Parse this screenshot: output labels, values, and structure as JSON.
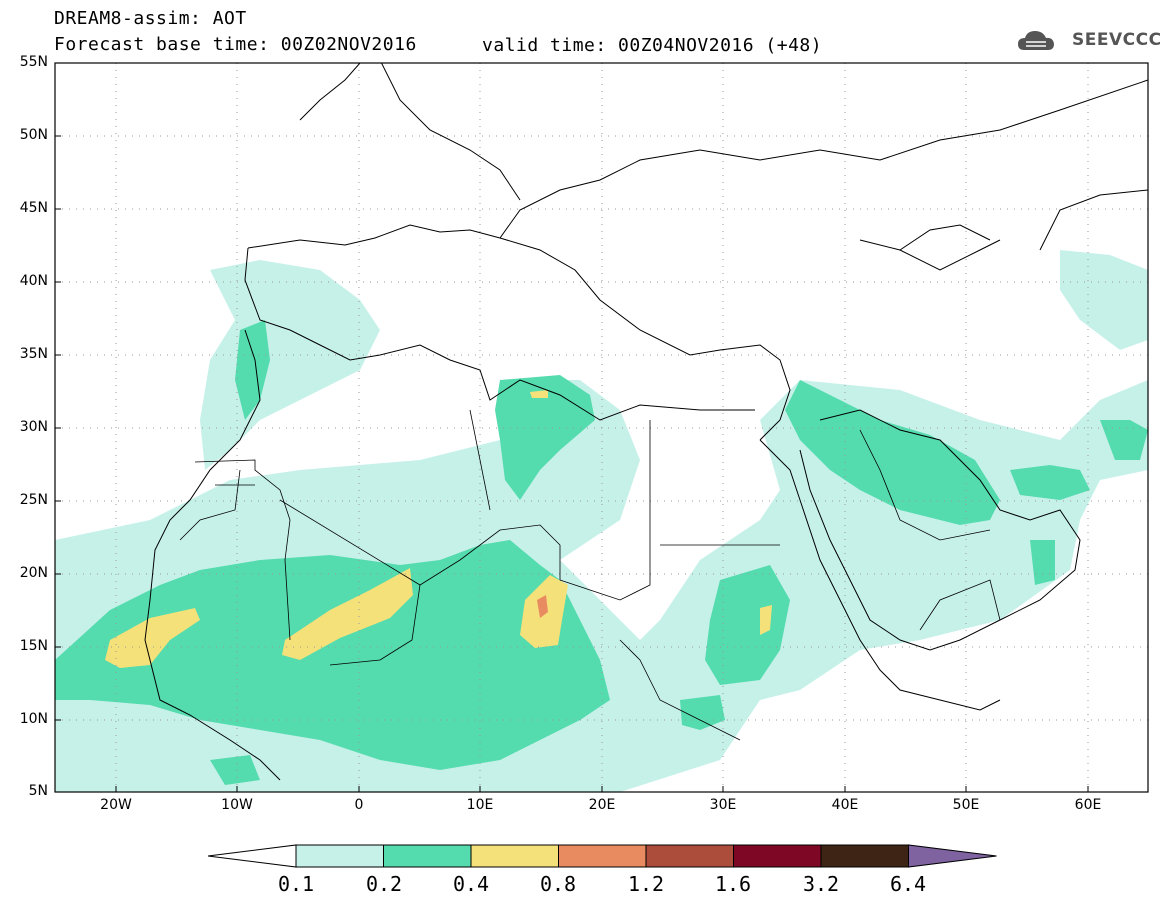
{
  "header": {
    "line1": "DREAM8-assim: AOT",
    "line2": "Forecast base time: 00Z02NOV2016",
    "valid": "valid time: 00Z04NOV2016 (+48)"
  },
  "logo": {
    "text": "SEEVCCC",
    "icon": "cloud-icon"
  },
  "lat_labels": [
    "55N",
    "50N",
    "45N",
    "40N",
    "35N",
    "30N",
    "25N",
    "20N",
    "15N",
    "10N",
    "5N"
  ],
  "lon_labels": [
    "20W",
    "10W",
    "0",
    "10E",
    "20E",
    "30E",
    "40E",
    "50E",
    "60E"
  ],
  "colorbar": {
    "labels": [
      "0.1",
      "0.2",
      "0.4",
      "0.8",
      "1.2",
      "1.6",
      "3.2",
      "6.4"
    ],
    "colors": [
      "#ffffff",
      "#c6f1e9",
      "#54dbae",
      "#f5e17a",
      "#e98b61",
      "#ac4c3b",
      "#7d0725",
      "#3d2415",
      "#7f62a0"
    ]
  }
}
